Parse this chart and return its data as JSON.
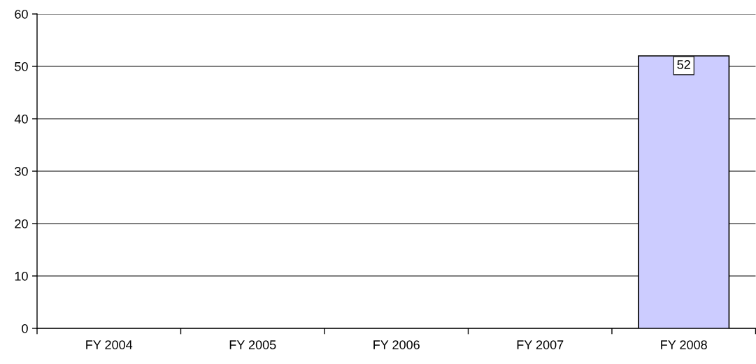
{
  "chart_data": {
    "type": "bar",
    "categories": [
      "FY 2004",
      "FY 2005",
      "FY 2006",
      "FY 2007",
      "FY 2008"
    ],
    "values": [
      null,
      null,
      null,
      null,
      52
    ],
    "color": "#ccccff",
    "ylim": [
      0,
      60
    ],
    "yticks": [
      0,
      10,
      20,
      30,
      40,
      50,
      60
    ],
    "grid": "y",
    "data_labels": true
  }
}
